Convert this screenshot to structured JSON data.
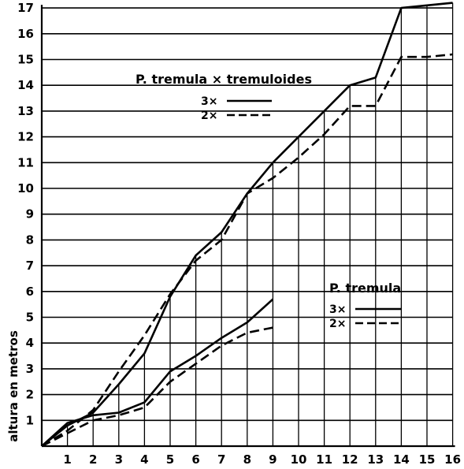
{
  "chart_data": {
    "type": "line",
    "ylabel": "altura en metros",
    "xlim": [
      0,
      16
    ],
    "ylim": [
      0,
      17
    ],
    "x_ticks": [
      "1",
      "2",
      "3",
      "4",
      "5",
      "6",
      "7",
      "8",
      "9",
      "10",
      "11",
      "12",
      "13",
      "14",
      "15",
      "16"
    ],
    "y_ticks": [
      "1",
      "2",
      "3",
      "4",
      "5",
      "6",
      "7",
      "8",
      "9",
      "10",
      "11",
      "12",
      "13",
      "14",
      "15",
      "16",
      "17"
    ],
    "grid": "horizontal lines at every unit; vertical drop lines at each x from 1 to 16",
    "groups": [
      {
        "name": "P. tremula × tremuloides",
        "legend": {
          "title": "P. tremula × tremuloides",
          "entries": [
            "3×",
            "2×"
          ]
        },
        "series": [
          {
            "name": "3×",
            "style": "solid",
            "x": [
              0,
              1,
              2,
              3,
              4,
              5,
              6,
              7,
              8,
              9,
              10,
              11,
              12,
              13,
              14,
              15,
              16
            ],
            "y": [
              0,
              0.8,
              1.3,
              2.4,
              3.6,
              5.8,
              7.4,
              8.3,
              9.8,
              11.0,
              12.0,
              13.0,
              14.0,
              14.3,
              17.0,
              17.1,
              17.2
            ]
          },
          {
            "name": "2×",
            "style": "dashed",
            "x": [
              0,
              1,
              2,
              3,
              4,
              5,
              6,
              7,
              8,
              9,
              10,
              11,
              12,
              13,
              14,
              15,
              16
            ],
            "y": [
              0,
              0.6,
              1.4,
              2.9,
              4.3,
              5.9,
              7.2,
              8.0,
              9.8,
              10.4,
              11.2,
              12.1,
              13.2,
              13.2,
              15.1,
              15.1,
              15.2
            ]
          }
        ]
      },
      {
        "name": "P. tremula",
        "legend": {
          "title": "P. tremula",
          "entries": [
            "3×",
            "2×"
          ]
        },
        "series": [
          {
            "name": "3×",
            "style": "solid",
            "x": [
              0,
              1,
              2,
              3,
              4,
              5,
              6,
              7,
              8,
              9
            ],
            "y": [
              0,
              0.9,
              1.2,
              1.3,
              1.7,
              2.9,
              3.5,
              4.2,
              4.8,
              5.7
            ]
          },
          {
            "name": "2×",
            "style": "dashed",
            "x": [
              0,
              1,
              2,
              3,
              4,
              5,
              6,
              7,
              8,
              9
            ],
            "y": [
              0,
              0.5,
              1.0,
              1.2,
              1.5,
              2.5,
              3.2,
              3.9,
              4.4,
              4.6
            ]
          }
        ]
      }
    ]
  }
}
